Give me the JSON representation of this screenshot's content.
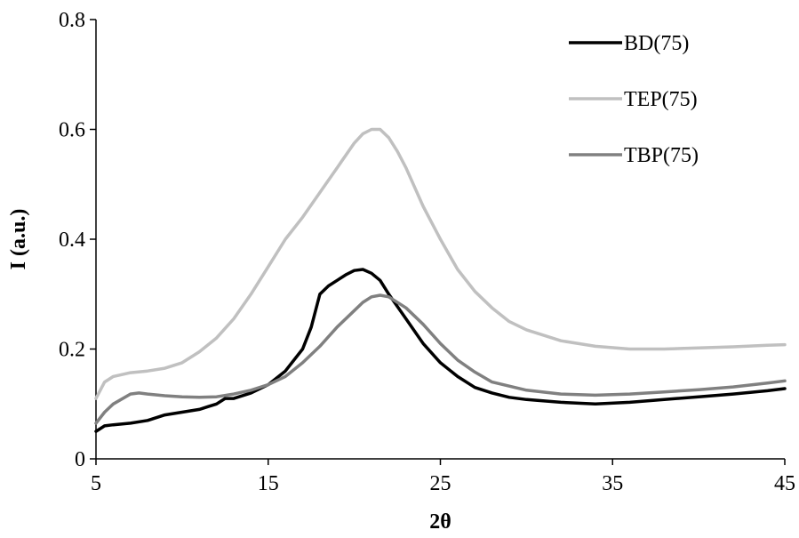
{
  "chart_data": {
    "type": "line",
    "title": "",
    "xlabel": "2θ",
    "ylabel": "I (a.u.)",
    "xlim": [
      5,
      45
    ],
    "ylim": [
      0,
      0.8
    ],
    "xticks": [
      5,
      15,
      25,
      35,
      45
    ],
    "yticks": [
      0,
      0.2,
      0.4,
      0.6,
      0.8
    ],
    "xtick_labels": [
      "5",
      "15",
      "25",
      "35",
      "45"
    ],
    "ytick_labels": [
      "0",
      "0.2",
      "0.4",
      "0.6",
      "0.8"
    ],
    "grid": false,
    "legend_position": "top-right",
    "series": [
      {
        "name": "BD(75)",
        "color": "#000000",
        "x": [
          5,
          5.5,
          6,
          7,
          8,
          9,
          10,
          11,
          11.5,
          12,
          12.5,
          13,
          14,
          15,
          16,
          17,
          17.5,
          18,
          18.5,
          19,
          19.5,
          20,
          20.5,
          21,
          21.5,
          22,
          23,
          24,
          25,
          26,
          27,
          28,
          29,
          30,
          32,
          34,
          36,
          38,
          40,
          42,
          44,
          45
        ],
        "y": [
          0.05,
          0.06,
          0.062,
          0.065,
          0.07,
          0.08,
          0.085,
          0.09,
          0.095,
          0.1,
          0.11,
          0.11,
          0.12,
          0.135,
          0.16,
          0.2,
          0.24,
          0.3,
          0.315,
          0.325,
          0.335,
          0.343,
          0.345,
          0.338,
          0.325,
          0.3,
          0.255,
          0.21,
          0.175,
          0.15,
          0.13,
          0.12,
          0.112,
          0.108,
          0.103,
          0.1,
          0.103,
          0.108,
          0.113,
          0.118,
          0.124,
          0.128
        ]
      },
      {
        "name": "TEP(75)",
        "color": "#c0c0c0",
        "x": [
          5,
          5.5,
          6,
          7,
          8,
          9,
          10,
          11,
          12,
          13,
          14,
          15,
          16,
          17,
          18,
          19,
          20,
          20.5,
          21,
          21.5,
          22,
          22.5,
          23,
          24,
          25,
          26,
          27,
          28,
          29,
          30,
          32,
          34,
          36,
          38,
          40,
          42,
          44,
          45
        ],
        "y": [
          0.11,
          0.14,
          0.15,
          0.157,
          0.16,
          0.165,
          0.175,
          0.195,
          0.22,
          0.255,
          0.3,
          0.35,
          0.4,
          0.44,
          0.485,
          0.53,
          0.575,
          0.592,
          0.6,
          0.6,
          0.585,
          0.56,
          0.53,
          0.46,
          0.4,
          0.345,
          0.305,
          0.275,
          0.25,
          0.235,
          0.215,
          0.205,
          0.2,
          0.2,
          0.202,
          0.204,
          0.207,
          0.208
        ]
      },
      {
        "name": "TBP(75)",
        "color": "#808080",
        "x": [
          5,
          5.5,
          6,
          7,
          7.5,
          8,
          9,
          10,
          11,
          12,
          13,
          14,
          15,
          16,
          17,
          18,
          19,
          20,
          20.5,
          21,
          21.5,
          22,
          23,
          24,
          25,
          26,
          27,
          28,
          30,
          32,
          34,
          36,
          38,
          40,
          42,
          44,
          45
        ],
        "y": [
          0.065,
          0.085,
          0.1,
          0.118,
          0.12,
          0.118,
          0.115,
          0.113,
          0.112,
          0.113,
          0.118,
          0.125,
          0.135,
          0.15,
          0.175,
          0.205,
          0.24,
          0.27,
          0.285,
          0.295,
          0.298,
          0.295,
          0.275,
          0.245,
          0.21,
          0.18,
          0.158,
          0.14,
          0.125,
          0.118,
          0.116,
          0.118,
          0.122,
          0.126,
          0.131,
          0.138,
          0.142
        ]
      }
    ]
  }
}
